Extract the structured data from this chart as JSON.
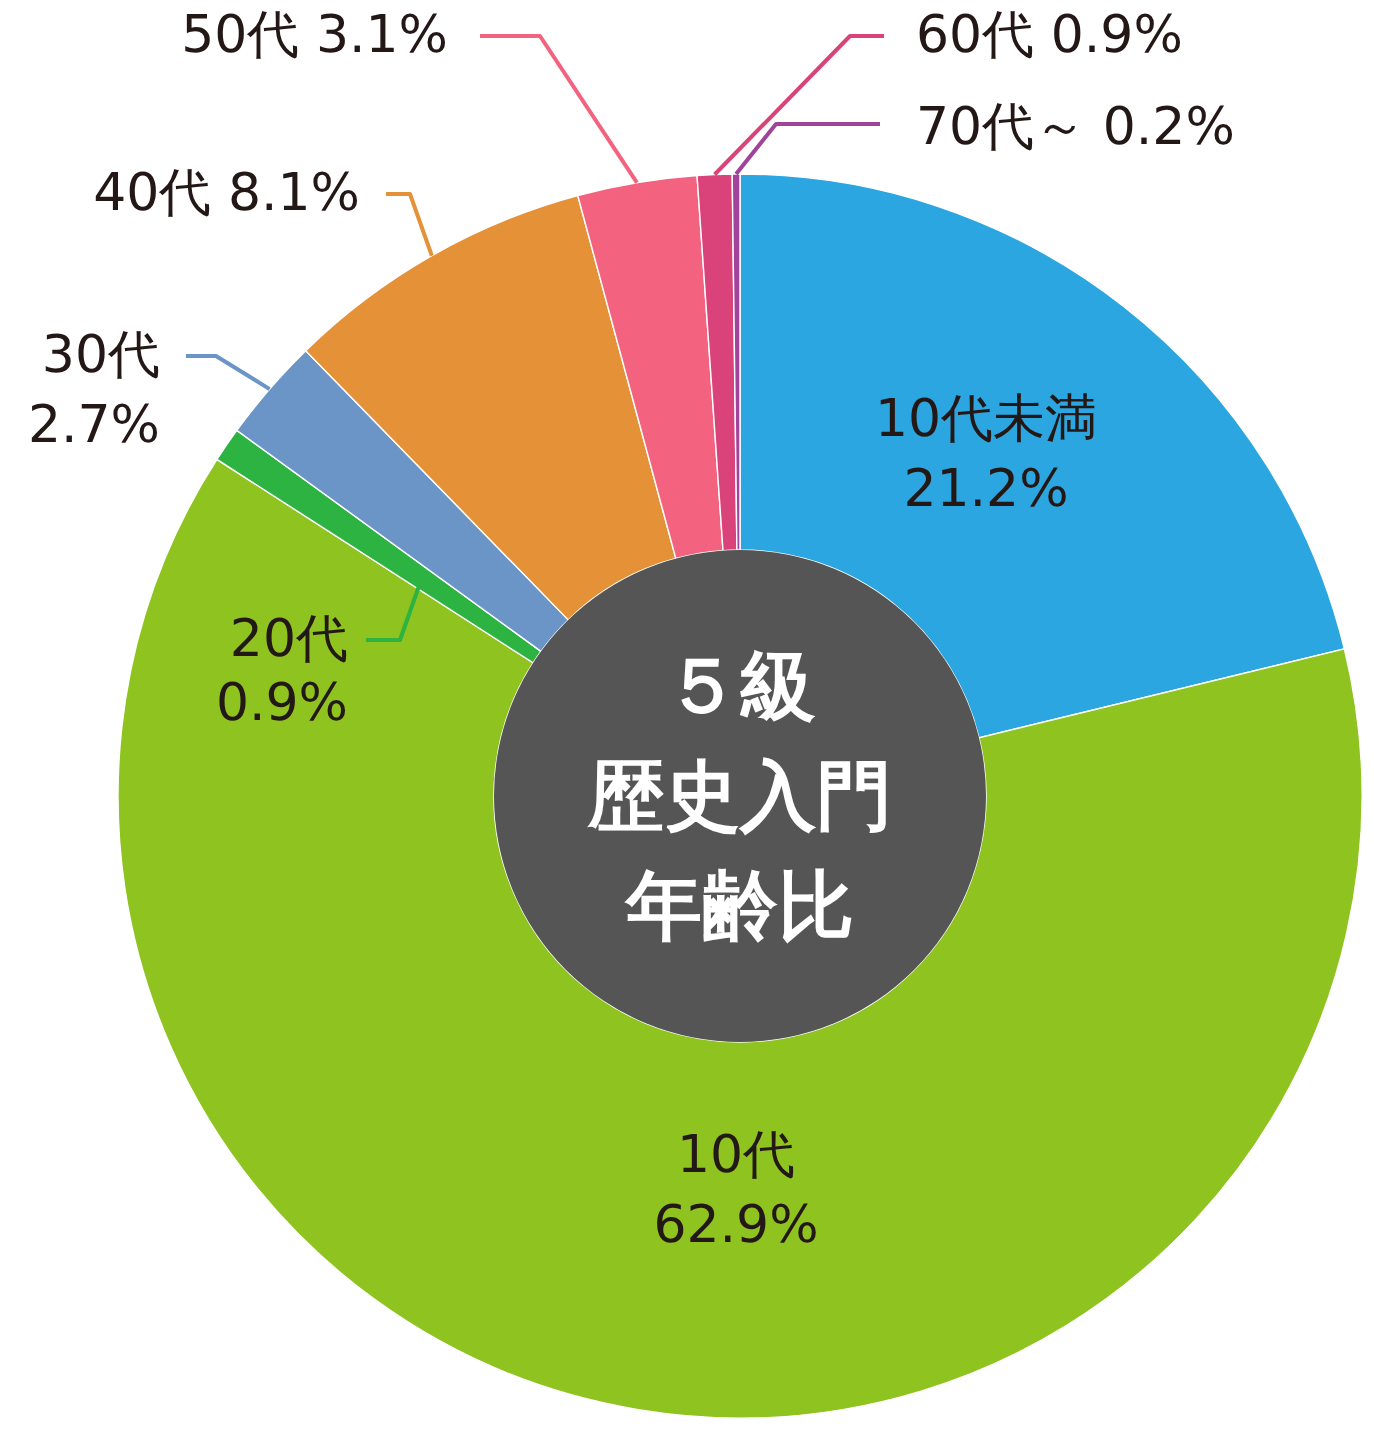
{
  "chart_data": {
    "type": "donut",
    "title": "５級歴史入門年齢比",
    "categories": [
      "10代未満",
      "10代",
      "20代",
      "30代",
      "40代",
      "50代",
      "60代",
      "70代～"
    ],
    "values": [
      21.2,
      62.9,
      0.9,
      2.7,
      8.1,
      3.1,
      0.9,
      0.2
    ],
    "colors": [
      "#2ca6e0",
      "#8fc31f",
      "#2db341",
      "#6a95c6",
      "#e59137",
      "#f36380",
      "#d9437a",
      "#a0439b"
    ],
    "value_labels": [
      "21.2%",
      "62.9%",
      "0.9%",
      "2.7%",
      "8.1%",
      "3.1%",
      "0.9%",
      "0.2%"
    ],
    "legend": false
  }
}
